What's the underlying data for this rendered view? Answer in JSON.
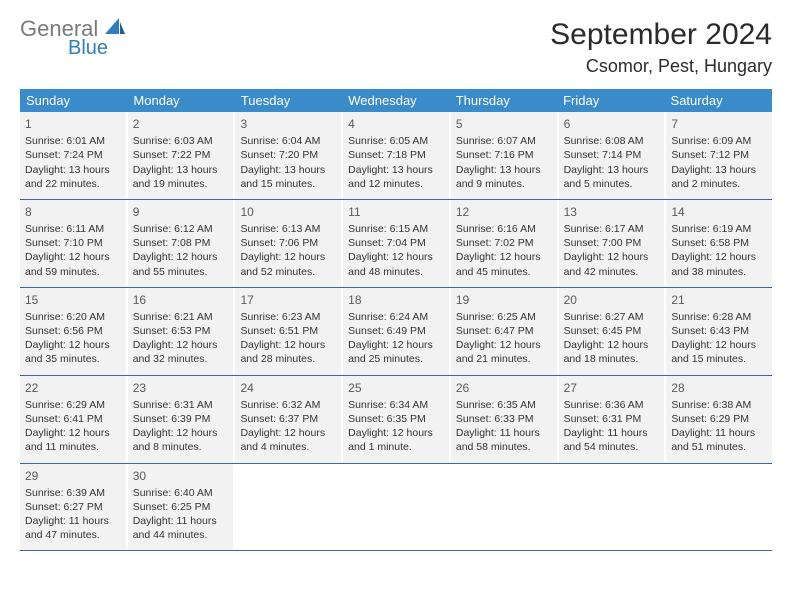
{
  "logo": {
    "gray": "General",
    "blue": "Blue"
  },
  "title": "September 2024",
  "location": "Csomor, Pest, Hungary",
  "colors": {
    "header_bg": "#3a8bc9",
    "header_text": "#ffffff",
    "cell_bg": "#f2f2f2",
    "row_border": "#3a6a95",
    "logo_gray": "#7a7a7a",
    "logo_blue": "#2f7ebf"
  },
  "day_headers": [
    "Sunday",
    "Monday",
    "Tuesday",
    "Wednesday",
    "Thursday",
    "Friday",
    "Saturday"
  ],
  "weeks": [
    [
      {
        "day": "1",
        "sunrise": "Sunrise: 6:01 AM",
        "sunset": "Sunset: 7:24 PM",
        "daylight1": "Daylight: 13 hours",
        "daylight2": "and 22 minutes."
      },
      {
        "day": "2",
        "sunrise": "Sunrise: 6:03 AM",
        "sunset": "Sunset: 7:22 PM",
        "daylight1": "Daylight: 13 hours",
        "daylight2": "and 19 minutes."
      },
      {
        "day": "3",
        "sunrise": "Sunrise: 6:04 AM",
        "sunset": "Sunset: 7:20 PM",
        "daylight1": "Daylight: 13 hours",
        "daylight2": "and 15 minutes."
      },
      {
        "day": "4",
        "sunrise": "Sunrise: 6:05 AM",
        "sunset": "Sunset: 7:18 PM",
        "daylight1": "Daylight: 13 hours",
        "daylight2": "and 12 minutes."
      },
      {
        "day": "5",
        "sunrise": "Sunrise: 6:07 AM",
        "sunset": "Sunset: 7:16 PM",
        "daylight1": "Daylight: 13 hours",
        "daylight2": "and 9 minutes."
      },
      {
        "day": "6",
        "sunrise": "Sunrise: 6:08 AM",
        "sunset": "Sunset: 7:14 PM",
        "daylight1": "Daylight: 13 hours",
        "daylight2": "and 5 minutes."
      },
      {
        "day": "7",
        "sunrise": "Sunrise: 6:09 AM",
        "sunset": "Sunset: 7:12 PM",
        "daylight1": "Daylight: 13 hours",
        "daylight2": "and 2 minutes."
      }
    ],
    [
      {
        "day": "8",
        "sunrise": "Sunrise: 6:11 AM",
        "sunset": "Sunset: 7:10 PM",
        "daylight1": "Daylight: 12 hours",
        "daylight2": "and 59 minutes."
      },
      {
        "day": "9",
        "sunrise": "Sunrise: 6:12 AM",
        "sunset": "Sunset: 7:08 PM",
        "daylight1": "Daylight: 12 hours",
        "daylight2": "and 55 minutes."
      },
      {
        "day": "10",
        "sunrise": "Sunrise: 6:13 AM",
        "sunset": "Sunset: 7:06 PM",
        "daylight1": "Daylight: 12 hours",
        "daylight2": "and 52 minutes."
      },
      {
        "day": "11",
        "sunrise": "Sunrise: 6:15 AM",
        "sunset": "Sunset: 7:04 PM",
        "daylight1": "Daylight: 12 hours",
        "daylight2": "and 48 minutes."
      },
      {
        "day": "12",
        "sunrise": "Sunrise: 6:16 AM",
        "sunset": "Sunset: 7:02 PM",
        "daylight1": "Daylight: 12 hours",
        "daylight2": "and 45 minutes."
      },
      {
        "day": "13",
        "sunrise": "Sunrise: 6:17 AM",
        "sunset": "Sunset: 7:00 PM",
        "daylight1": "Daylight: 12 hours",
        "daylight2": "and 42 minutes."
      },
      {
        "day": "14",
        "sunrise": "Sunrise: 6:19 AM",
        "sunset": "Sunset: 6:58 PM",
        "daylight1": "Daylight: 12 hours",
        "daylight2": "and 38 minutes."
      }
    ],
    [
      {
        "day": "15",
        "sunrise": "Sunrise: 6:20 AM",
        "sunset": "Sunset: 6:56 PM",
        "daylight1": "Daylight: 12 hours",
        "daylight2": "and 35 minutes."
      },
      {
        "day": "16",
        "sunrise": "Sunrise: 6:21 AM",
        "sunset": "Sunset: 6:53 PM",
        "daylight1": "Daylight: 12 hours",
        "daylight2": "and 32 minutes."
      },
      {
        "day": "17",
        "sunrise": "Sunrise: 6:23 AM",
        "sunset": "Sunset: 6:51 PM",
        "daylight1": "Daylight: 12 hours",
        "daylight2": "and 28 minutes."
      },
      {
        "day": "18",
        "sunrise": "Sunrise: 6:24 AM",
        "sunset": "Sunset: 6:49 PM",
        "daylight1": "Daylight: 12 hours",
        "daylight2": "and 25 minutes."
      },
      {
        "day": "19",
        "sunrise": "Sunrise: 6:25 AM",
        "sunset": "Sunset: 6:47 PM",
        "daylight1": "Daylight: 12 hours",
        "daylight2": "and 21 minutes."
      },
      {
        "day": "20",
        "sunrise": "Sunrise: 6:27 AM",
        "sunset": "Sunset: 6:45 PM",
        "daylight1": "Daylight: 12 hours",
        "daylight2": "and 18 minutes."
      },
      {
        "day": "21",
        "sunrise": "Sunrise: 6:28 AM",
        "sunset": "Sunset: 6:43 PM",
        "daylight1": "Daylight: 12 hours",
        "daylight2": "and 15 minutes."
      }
    ],
    [
      {
        "day": "22",
        "sunrise": "Sunrise: 6:29 AM",
        "sunset": "Sunset: 6:41 PM",
        "daylight1": "Daylight: 12 hours",
        "daylight2": "and 11 minutes."
      },
      {
        "day": "23",
        "sunrise": "Sunrise: 6:31 AM",
        "sunset": "Sunset: 6:39 PM",
        "daylight1": "Daylight: 12 hours",
        "daylight2": "and 8 minutes."
      },
      {
        "day": "24",
        "sunrise": "Sunrise: 6:32 AM",
        "sunset": "Sunset: 6:37 PM",
        "daylight1": "Daylight: 12 hours",
        "daylight2": "and 4 minutes."
      },
      {
        "day": "25",
        "sunrise": "Sunrise: 6:34 AM",
        "sunset": "Sunset: 6:35 PM",
        "daylight1": "Daylight: 12 hours",
        "daylight2": "and 1 minute."
      },
      {
        "day": "26",
        "sunrise": "Sunrise: 6:35 AM",
        "sunset": "Sunset: 6:33 PM",
        "daylight1": "Daylight: 11 hours",
        "daylight2": "and 58 minutes."
      },
      {
        "day": "27",
        "sunrise": "Sunrise: 6:36 AM",
        "sunset": "Sunset: 6:31 PM",
        "daylight1": "Daylight: 11 hours",
        "daylight2": "and 54 minutes."
      },
      {
        "day": "28",
        "sunrise": "Sunrise: 6:38 AM",
        "sunset": "Sunset: 6:29 PM",
        "daylight1": "Daylight: 11 hours",
        "daylight2": "and 51 minutes."
      }
    ],
    [
      {
        "day": "29",
        "sunrise": "Sunrise: 6:39 AM",
        "sunset": "Sunset: 6:27 PM",
        "daylight1": "Daylight: 11 hours",
        "daylight2": "and 47 minutes."
      },
      {
        "day": "30",
        "sunrise": "Sunrise: 6:40 AM",
        "sunset": "Sunset: 6:25 PM",
        "daylight1": "Daylight: 11 hours",
        "daylight2": "and 44 minutes."
      },
      null,
      null,
      null,
      null,
      null
    ]
  ]
}
